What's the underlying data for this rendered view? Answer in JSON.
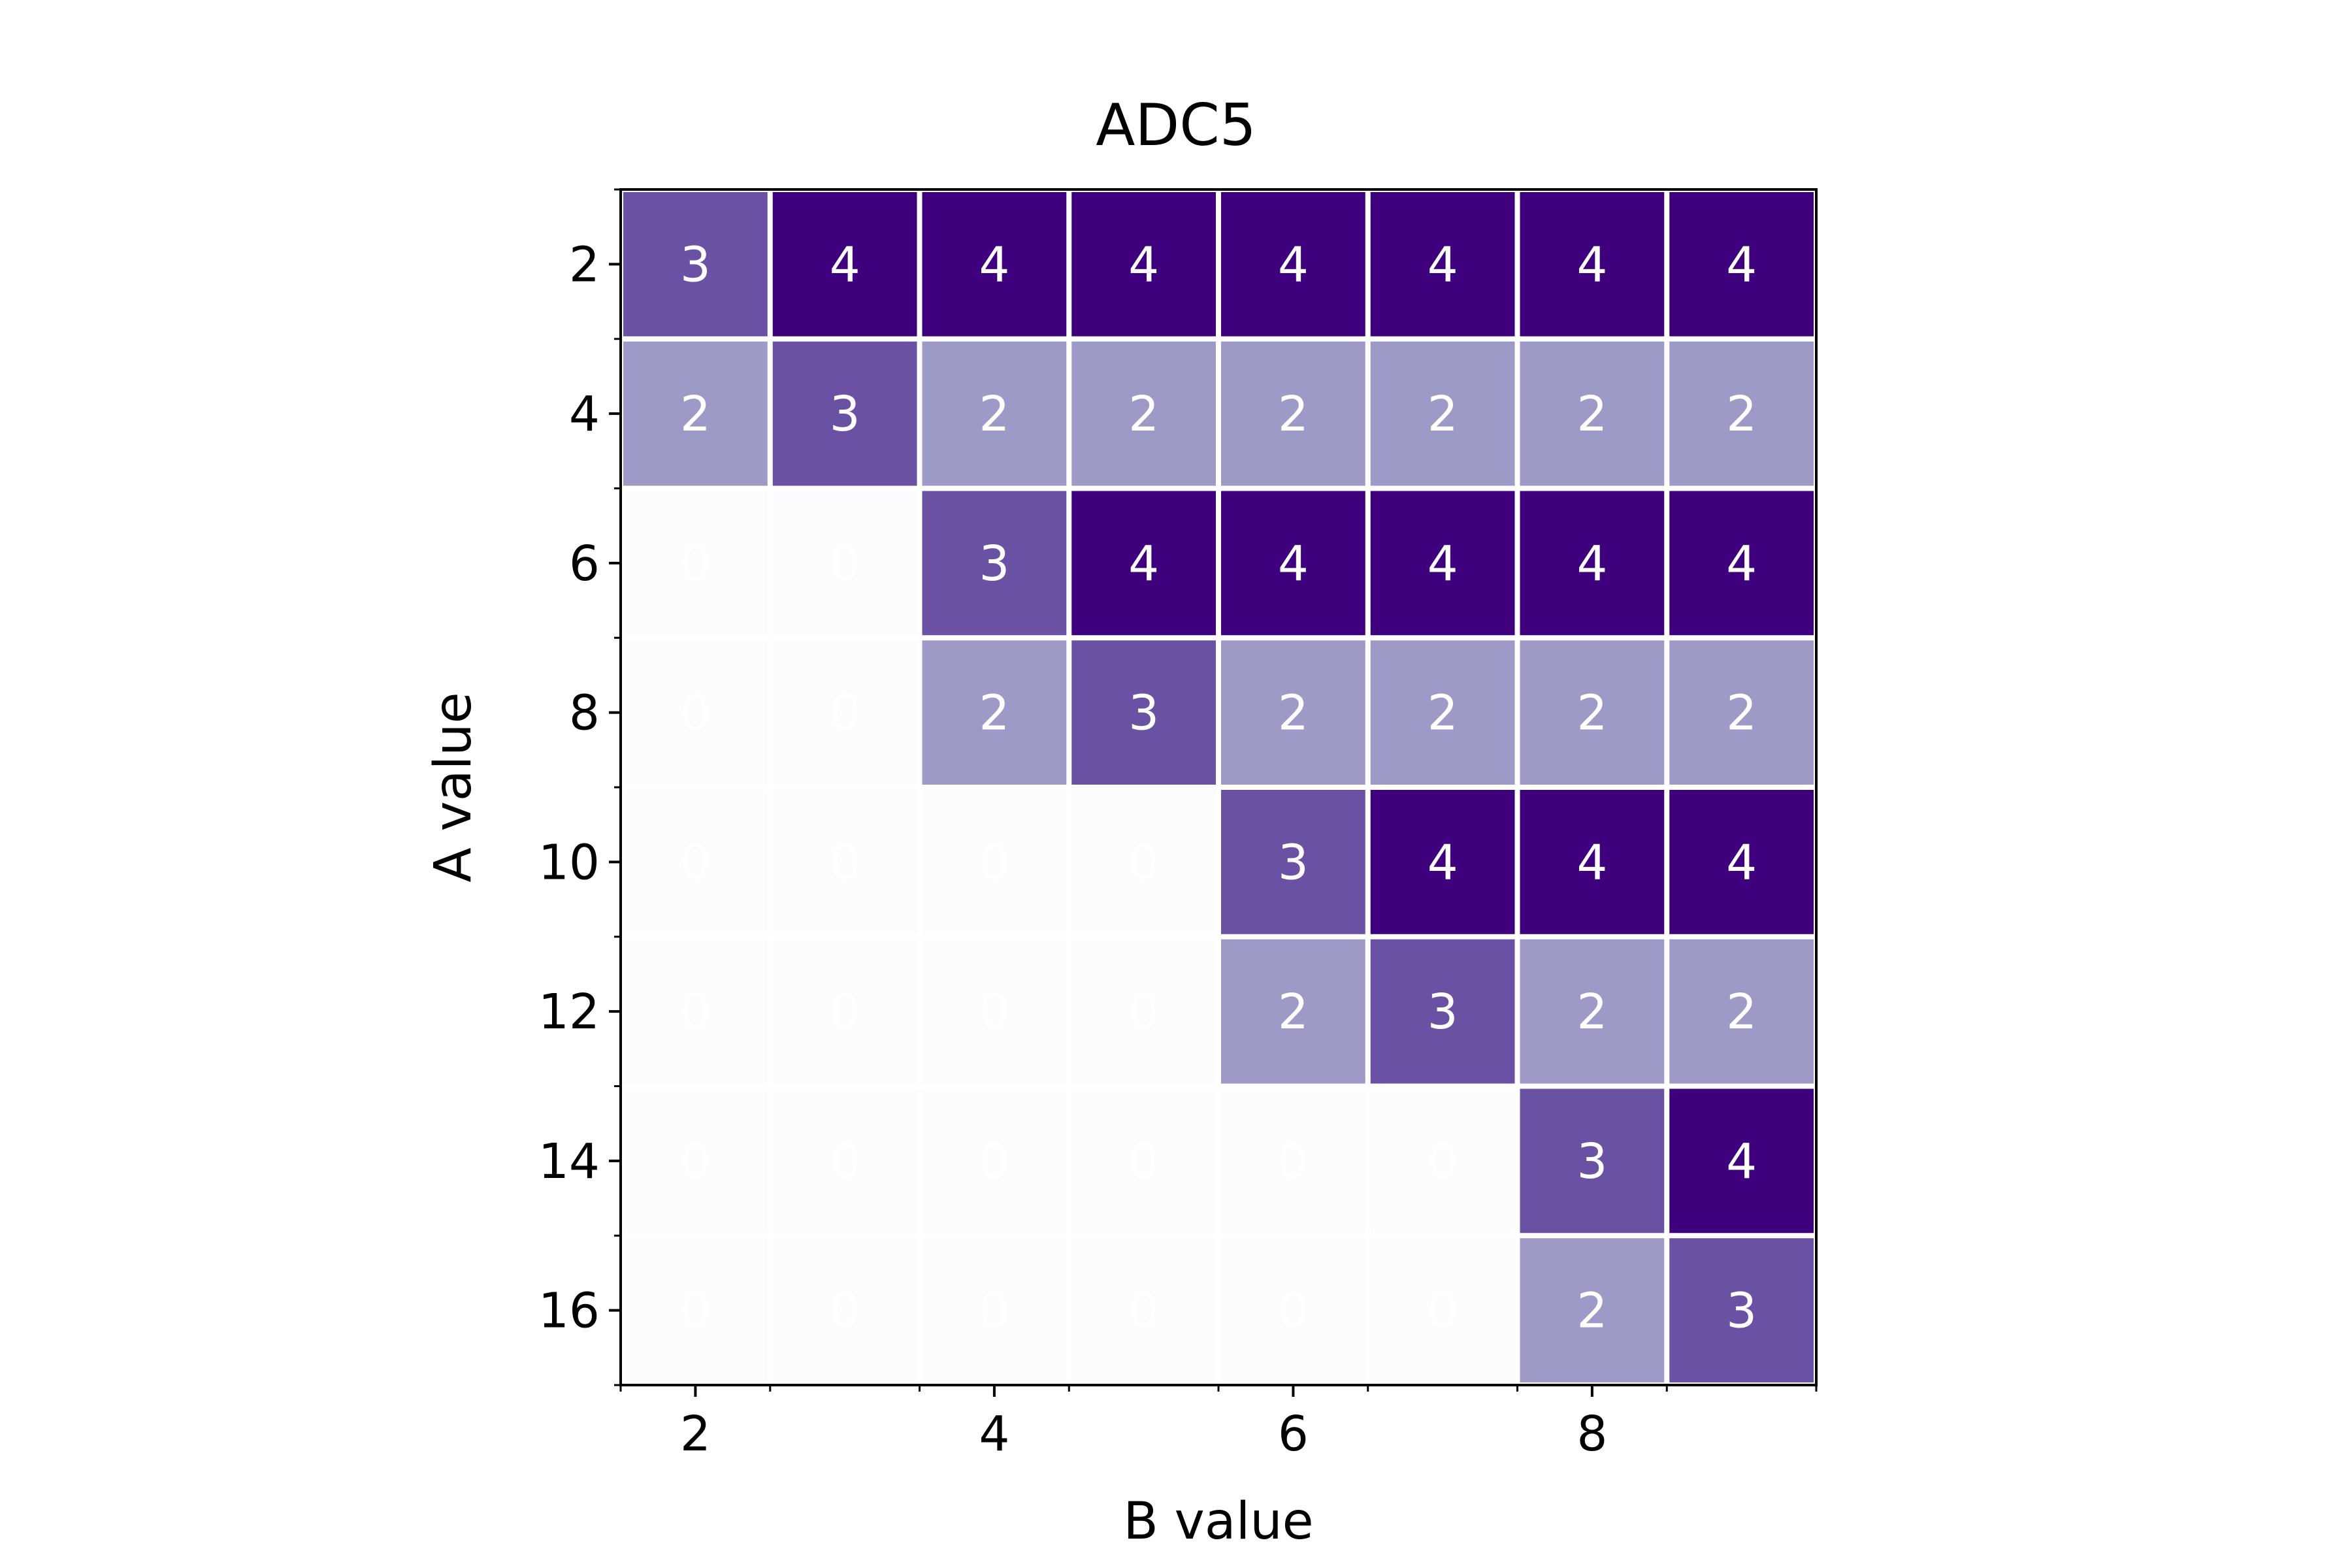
{
  "chart_data": {
    "type": "heatmap",
    "title": "ADC5",
    "xlabel": "B value",
    "ylabel": "A value",
    "x": [
      2,
      3,
      4,
      5,
      6,
      7,
      8,
      9
    ],
    "y": [
      2,
      4,
      6,
      8,
      10,
      12,
      14,
      16
    ],
    "x_tick_labels": [
      "2",
      "4",
      "6",
      "8"
    ],
    "y_tick_labels": [
      "2",
      "4",
      "6",
      "8",
      "10",
      "12",
      "14",
      "16"
    ],
    "values": [
      [
        3,
        4,
        4,
        4,
        4,
        4,
        4,
        4
      ],
      [
        2,
        3,
        2,
        2,
        2,
        2,
        2,
        2
      ],
      [
        0,
        0,
        3,
        4,
        4,
        4,
        4,
        4
      ],
      [
        0,
        0,
        2,
        3,
        2,
        2,
        2,
        2
      ],
      [
        0,
        0,
        0,
        0,
        3,
        4,
        4,
        4
      ],
      [
        0,
        0,
        0,
        0,
        2,
        3,
        2,
        2
      ],
      [
        0,
        0,
        0,
        0,
        0,
        0,
        3,
        4
      ],
      [
        0,
        0,
        0,
        0,
        0,
        0,
        2,
        3
      ]
    ],
    "colormap": "Purples",
    "color_scale": {
      "0": "#fcfbfd",
      "2": "#9e9ac8",
      "3": "#6a51a3",
      "4": "#3f007d"
    },
    "cell_text_color": "#ffffff",
    "grid": false
  }
}
